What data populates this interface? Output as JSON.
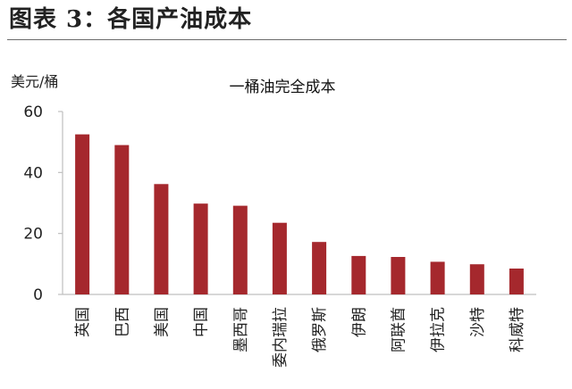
{
  "figure_title": "图表 3：各国产油成本",
  "chart_data": {
    "type": "bar",
    "title": "一桶油完全成本",
    "ylabel": "美元/桶",
    "xlabel": "",
    "ylim": [
      0,
      60
    ],
    "yticks": [
      "0",
      "20",
      "40",
      "60"
    ],
    "categories": [
      "英国",
      "巴西",
      "美国",
      "中国",
      "墨西哥",
      "委内瑞拉",
      "俄罗斯",
      "伊朗",
      "阿联酋",
      "伊拉克",
      "沙特",
      "科威特"
    ],
    "values": [
      52.5,
      49,
      36.2,
      29.8,
      29.1,
      23.5,
      17.2,
      12.6,
      12.3,
      10.7,
      9.9,
      8.5
    ],
    "bar_color": "#a5282d",
    "grid": false,
    "legend": "none"
  }
}
